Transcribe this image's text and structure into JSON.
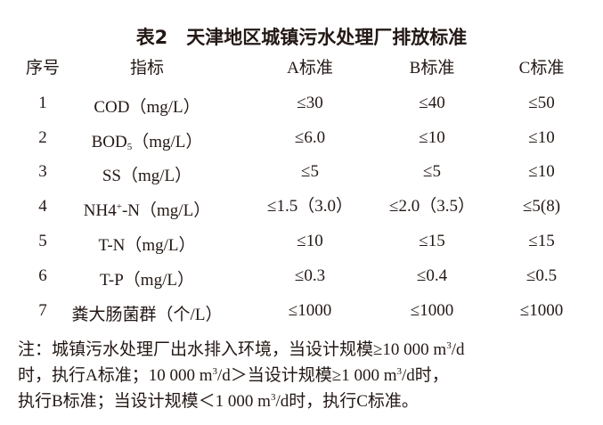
{
  "title": "表2　天津地区城镇污水处理厂排放标准",
  "headers": [
    "序号",
    "指标",
    "A标准",
    "B标准",
    "C标准"
  ],
  "rows": [
    {
      "no": "1",
      "ind": {
        "pre": "COD（mg/L）",
        "sub": "",
        "sup": "",
        "post": ""
      },
      "a": "≤30",
      "b": "≤40",
      "c": "≤50"
    },
    {
      "no": "2",
      "ind": {
        "pre": "BOD",
        "sub": "5",
        "sup": "",
        "post": "（mg/L）"
      },
      "a": "≤6.0",
      "b": "≤10",
      "c": "≤10"
    },
    {
      "no": "3",
      "ind": {
        "pre": "SS（mg/L）",
        "sub": "",
        "sup": "",
        "post": ""
      },
      "a": "≤5",
      "b": "≤5",
      "c": "≤10"
    },
    {
      "no": "4",
      "ind": {
        "pre": "NH4",
        "sub": "",
        "sup": "+",
        "post": "-N（mg/L）"
      },
      "a": "≤1.5（3.0）",
      "b": "≤2.0（3.5）",
      "c": "≤5(8)"
    },
    {
      "no": "5",
      "ind": {
        "pre": "T-N（mg/L）",
        "sub": "",
        "sup": "",
        "post": ""
      },
      "a": "≤10",
      "b": "≤15",
      "c": "≤15"
    },
    {
      "no": "6",
      "ind": {
        "pre": "T-P（mg/L）",
        "sub": "",
        "sup": "",
        "post": ""
      },
      "a": "≤0.3",
      "b": "≤0.4",
      "c": "≤0.5"
    },
    {
      "no": "7",
      "ind": {
        "pre": "粪大肠菌群（个/L）",
        "sub": "",
        "sup": "",
        "post": ""
      },
      "a": "≤1000",
      "b": "≤1000",
      "c": "≤1000"
    }
  ],
  "note": {
    "l1a": "注：城镇污水处理厂出水排入环境，当设计规模≥10 000 m",
    "l1s": "3",
    "l1b": "/d",
    "l2a": "时，执行A标准；10 000 m",
    "l2s": "3",
    "l2b": "/d＞当设计规模≥1 000 m",
    "l2s2": "3",
    "l2c": "/d时，",
    "l3a": "执行B标准；当设计规模＜1 000 m",
    "l3s": "3",
    "l3b": "/d时，执行C标准。"
  }
}
